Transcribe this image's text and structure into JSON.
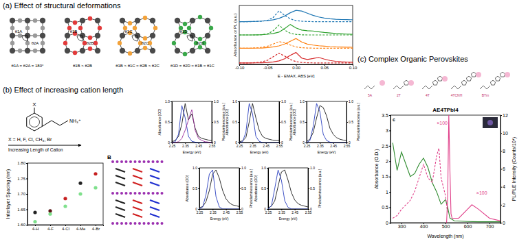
{
  "panels": {
    "a": {
      "title": "(a) Effect of structural deformations",
      "diagram_labels": [
        [
          "θ1A",
          "θ2A"
        ],
        [
          "θ1B",
          "θ2B"
        ],
        [
          "θ1C",
          "θ2C"
        ],
        [
          "θ1D",
          "θ2D"
        ]
      ],
      "angle_labels": [
        "θ1A = θ2A = 180°",
        "θ1B > θ2B",
        "θ1B > θ1C ≈ θ2B > θ2C",
        "θ1D = θ2D ≈ θ1B ≈ θ1C"
      ]
    },
    "b": {
      "title": "(b) Effect of increasing cation length",
      "substituent": "X",
      "amine": "NH₃⁺",
      "caption": "X = H, F, Cl, CH₃, Br",
      "arrow_label": "Increasing Length of Cation",
      "structure_label": "B"
    },
    "c": {
      "title": "(c) Complex Organic Perovskites",
      "molecules": [
        "5A",
        "2T",
        "4T",
        "4TCNH",
        "BTm"
      ],
      "inset_letter": "c",
      "annotations": [
        "×100",
        "×100"
      ]
    }
  },
  "chart_data": [
    {
      "type": "line",
      "xlabel": "E - EMAX, ABS [eV]",
      "ylabel": "Absorbance or PL (a.u.)",
      "x": [
        -0.1,
        -0.09,
        -0.08,
        -0.07,
        -0.06,
        -0.05,
        -0.04,
        -0.03,
        -0.02,
        -0.01,
        0,
        0.01,
        0.02,
        0.03,
        0.04,
        0.05,
        0.06,
        0.07,
        0.08,
        0.09,
        0.1
      ],
      "xlim": [
        -0.1,
        0.1
      ],
      "xticks": [
        {
          "value": -0.1,
          "label": "-0.10"
        },
        {
          "value": -0.05,
          "label": "-0.05"
        },
        {
          "value": 0,
          "label": "0.00"
        },
        {
          "value": 0.05,
          "label": "0.05"
        },
        {
          "value": 0.1,
          "label": "0.10"
        }
      ],
      "ylim": [
        0,
        4.2
      ],
      "tick_labels": "x",
      "series": [
        {
          "color": "#1f77b4",
          "line_style": "solid",
          "values": [
            3.05,
            3.05,
            3.06,
            3.07,
            3.09,
            3.12,
            3.18,
            3.28,
            3.45,
            3.68,
            3.85,
            3.8,
            3.65,
            3.5,
            3.38,
            3.3,
            3.25,
            3.22,
            3.2,
            3.19,
            3.18
          ]
        },
        {
          "color": "#1f77b4",
          "line_style": "dashed",
          "values": [
            3.05,
            3.05,
            3.05,
            3.06,
            3.08,
            3.14,
            3.35,
            3.82,
            3.5,
            3.25,
            3.12,
            3.08,
            3.06,
            3.05,
            3.05,
            3.05,
            3.05,
            3.05,
            3.05,
            3.05,
            3.05
          ]
        },
        {
          "color": "#2ca02c",
          "line_style": "solid",
          "values": [
            2.1,
            2.1,
            2.1,
            2.11,
            2.12,
            2.15,
            2.2,
            2.3,
            2.55,
            2.85,
            2.6,
            2.45,
            2.4,
            2.38,
            2.33,
            2.28,
            2.24,
            2.2,
            2.18,
            2.16,
            2.15
          ]
        },
        {
          "color": "#2ca02c",
          "line_style": "dashed",
          "values": [
            2.1,
            2.1,
            2.1,
            2.1,
            2.12,
            2.18,
            2.4,
            2.8,
            2.45,
            2.22,
            2.14,
            2.11,
            2.1,
            2.1,
            2.1,
            2.1,
            2.1,
            2.1,
            2.1,
            2.1,
            2.1
          ]
        },
        {
          "color": "#ff7f0e",
          "line_style": "solid",
          "values": [
            1.15,
            1.15,
            1.15,
            1.16,
            1.17,
            1.2,
            1.25,
            1.32,
            1.45,
            1.65,
            1.85,
            1.6,
            1.45,
            1.38,
            1.33,
            1.3,
            1.27,
            1.25,
            1.24,
            1.23,
            1.22
          ]
        },
        {
          "color": "#ff7f0e",
          "line_style": "dashed",
          "values": [
            1.15,
            1.15,
            1.16,
            1.18,
            1.22,
            1.3,
            1.45,
            1.62,
            1.55,
            1.38,
            1.25,
            1.19,
            1.17,
            1.16,
            1.15,
            1.15,
            1.15,
            1.15,
            1.15,
            1.15,
            1.15
          ]
        },
        {
          "color": "#d62728",
          "line_style": "solid",
          "values": [
            0.1,
            0.1,
            0.1,
            0.11,
            0.12,
            0.14,
            0.18,
            0.25,
            0.4,
            0.65,
            0.85,
            0.45,
            0.35,
            0.42,
            0.5,
            0.38,
            0.28,
            0.22,
            0.19,
            0.17,
            0.16
          ]
        },
        {
          "color": "#d62728",
          "line_style": "dashed",
          "values": [
            0.1,
            0.1,
            0.11,
            0.13,
            0.18,
            0.3,
            0.55,
            0.8,
            0.6,
            0.35,
            0.2,
            0.14,
            0.12,
            0.11,
            0.1,
            0.1,
            0.1,
            0.1,
            0.1,
            0.1,
            0.1
          ]
        }
      ]
    },
    {
      "type": "scatter",
      "ylabel": "Interlayer Spacing (nm)",
      "categories": [
        "4-H",
        "4-F",
        "4-Cl",
        "4-Me",
        "4-Br"
      ],
      "ylim": [
        1.6,
        1.8
      ],
      "yticks": [
        {
          "value": 1.6,
          "label": "1.60"
        },
        {
          "value": 1.65,
          "label": "1.65"
        },
        {
          "value": 1.7,
          "label": "1.70"
        },
        {
          "value": 1.75,
          "label": "1.75"
        },
        {
          "value": 1.8,
          "label": "1.80"
        }
      ],
      "series": [
        {
          "marker": "circle",
          "colors": [
            "#222222",
            "#5a1414",
            "#c62020",
            "#222222",
            "#c62020"
          ],
          "values": [
            1.64,
            1.645,
            1.685,
            1.735,
            1.765
          ]
        },
        {
          "marker": "circle",
          "color": "#7fe08c",
          "values": [
            1.61,
            1.635,
            1.66,
            1.7,
            1.72
          ]
        }
      ]
    },
    {
      "type": "line",
      "xlabel": "Energy (eV)",
      "ylabel": "Absorbance (OD)",
      "y2label": "Photoluminescence (a.u.)",
      "x": [
        2.25,
        2.275,
        2.3,
        2.325,
        2.35,
        2.375,
        2.4,
        2.425,
        2.45,
        2.475,
        2.5,
        2.525,
        2.55
      ],
      "xlim": [
        2.25,
        2.55
      ],
      "xticks": [
        2.25,
        2.35,
        2.45,
        2.55
      ],
      "ylim": [
        0,
        1
      ],
      "yticks": [
        0,
        {
          "value": 0.5,
          "label": "0.5"
        },
        {
          "value": 1,
          "label": "1.0"
        }
      ],
      "y2lim": [
        0,
        1
      ],
      "y2ticks": [
        0,
        {
          "value": 0.5,
          "label": "0.5"
        },
        {
          "value": 1,
          "label": "1.0"
        }
      ],
      "series": [
        {
          "color": "#1a1a1a",
          "line_style": "solid",
          "values": [
            0.02,
            0.05,
            0.15,
            0.45,
            0.95,
            0.55,
            0.7,
            0.35,
            0.15,
            0.1,
            0.08,
            0.06,
            0.05
          ]
        },
        {
          "color": "#2a3fc0",
          "line_style": "solid",
          "axis": "y2",
          "values": [
            0,
            0.02,
            0.2,
            0.9,
            0.6,
            0.15,
            0.03,
            0.01,
            0,
            0,
            0,
            0,
            0
          ]
        },
        {
          "color": "#9b2f9b",
          "line_style": "solid",
          "axis": "y2",
          "values": [
            0,
            0,
            0.02,
            0.1,
            0.3,
            0.55,
            0.8,
            0.3,
            0.1,
            0.05,
            0.02,
            0.01,
            0
          ]
        }
      ]
    },
    {
      "type": "line",
      "xlabel": "Energy (eV)",
      "ylabel": "Absorbance (OD)",
      "y2label": "Photoluminescence (a.u.)",
      "x": [
        2.25,
        2.275,
        2.3,
        2.325,
        2.35,
        2.375,
        2.4,
        2.425,
        2.45,
        2.475,
        2.5,
        2.525,
        2.55
      ],
      "xlim": [
        2.25,
        2.55
      ],
      "xticks": [
        2.25,
        2.35,
        2.45,
        2.55
      ],
      "ylim": [
        0,
        1
      ],
      "yticks": [
        0,
        {
          "value": 0.5,
          "label": "0.5"
        },
        {
          "value": 1,
          "label": "1.0"
        }
      ],
      "y2lim": [
        0,
        1
      ],
      "y2ticks": [
        0,
        {
          "value": 0.5,
          "label": "0.5"
        },
        {
          "value": 1,
          "label": "1.0"
        }
      ],
      "series": [
        {
          "color": "#1a1a1a",
          "line_style": "solid",
          "values": [
            0.02,
            0.04,
            0.12,
            0.5,
            0.95,
            0.6,
            0.3,
            0.15,
            0.1,
            0.08,
            0.06,
            0.05,
            0.05
          ]
        },
        {
          "color": "#2a3fc0",
          "line_style": "solid",
          "axis": "y2",
          "values": [
            0,
            0.02,
            0.25,
            0.95,
            0.7,
            0.15,
            0.03,
            0,
            0,
            0,
            0,
            0,
            0
          ]
        }
      ]
    },
    {
      "type": "line",
      "xlabel": "Energy (eV)",
      "ylabel": "Absorbance (OD)",
      "y2label": "Photoluminescence (a.u.)",
      "x": [
        2.25,
        2.275,
        2.3,
        2.325,
        2.35,
        2.375,
        2.4,
        2.425,
        2.45,
        2.475,
        2.5,
        2.525,
        2.55
      ],
      "xlim": [
        2.25,
        2.55
      ],
      "xticks": [
        2.25,
        2.35,
        2.45,
        2.55
      ],
      "ylim": [
        0,
        1
      ],
      "yticks": [
        0,
        {
          "value": 0.5,
          "label": "0.5"
        },
        {
          "value": 1,
          "label": "1.0"
        }
      ],
      "y2lim": [
        0,
        1
      ],
      "y2ticks": [
        0,
        {
          "value": 0.5,
          "label": "0.5"
        },
        {
          "value": 1,
          "label": "1.0"
        }
      ],
      "series": [
        {
          "color": "#1a1a1a",
          "line_style": "solid",
          "values": [
            0.03,
            0.08,
            0.25,
            0.6,
            0.9,
            0.85,
            0.65,
            0.35,
            0.2,
            0.12,
            0.08,
            0.06,
            0.05
          ]
        },
        {
          "color": "#2a3fc0",
          "line_style": "solid",
          "axis": "y2",
          "values": [
            0,
            0.05,
            0.4,
            0.95,
            0.75,
            0.2,
            0.05,
            0.01,
            0,
            0,
            0,
            0,
            0
          ]
        }
      ]
    },
    {
      "type": "line",
      "xlabel": "Energy (eV)",
      "ylabel": "Absorbance (OD)",
      "y2label": "Photoluminescence (a.u.)",
      "x": [
        2.25,
        2.275,
        2.3,
        2.325,
        2.35,
        2.375,
        2.4,
        2.425,
        2.45,
        2.475,
        2.5,
        2.525,
        2.55
      ],
      "xlim": [
        2.25,
        2.55
      ],
      "xticks": [
        2.25,
        2.35,
        2.45,
        2.55
      ],
      "ylim": [
        0,
        1
      ],
      "yticks": [
        0,
        {
          "value": 0.5,
          "label": "0.5"
        },
        {
          "value": 1,
          "label": "1.0"
        }
      ],
      "y2lim": [
        0,
        1
      ],
      "y2ticks": [
        0,
        {
          "value": 0.5,
          "label": "0.5"
        },
        {
          "value": 1,
          "label": "1.0"
        }
      ],
      "series": [
        {
          "color": "#1a1a1a",
          "line_style": "solid",
          "values": [
            0.03,
            0.06,
            0.18,
            0.45,
            0.85,
            0.95,
            0.75,
            0.45,
            0.25,
            0.15,
            0.1,
            0.08,
            0.06
          ]
        },
        {
          "color": "#2a3fc0",
          "line_style": "solid",
          "axis": "y2",
          "values": [
            0,
            0.05,
            0.35,
            0.85,
            0.95,
            0.3,
            0.05,
            0,
            0,
            0,
            0,
            0,
            0
          ]
        }
      ]
    },
    {
      "type": "line",
      "xlabel": "Energy (eV)",
      "ylabel": "Absorbance (OD)",
      "y2label": "Photoluminescence (a.u.)",
      "x": [
        2.25,
        2.275,
        2.3,
        2.325,
        2.35,
        2.375,
        2.4,
        2.425,
        2.45,
        2.475,
        2.5,
        2.525,
        2.55
      ],
      "xlim": [
        2.25,
        2.55
      ],
      "xticks": [
        2.25,
        2.35,
        2.45,
        2.55
      ],
      "ylim": [
        0,
        1
      ],
      "yticks": [
        0,
        {
          "value": 0.5,
          "label": "0.5"
        },
        {
          "value": 1,
          "label": "1.0"
        }
      ],
      "y2lim": [
        0,
        1
      ],
      "y2ticks": [
        0,
        {
          "value": 0.5,
          "label": "0.5"
        },
        {
          "value": 1,
          "label": "1.0"
        }
      ],
      "series": [
        {
          "color": "#1a1a1a",
          "line_style": "solid",
          "values": [
            0.03,
            0.07,
            0.2,
            0.55,
            0.9,
            0.95,
            0.7,
            0.4,
            0.22,
            0.13,
            0.09,
            0.07,
            0.05
          ]
        },
        {
          "color": "#2a3fc0",
          "line_style": "solid",
          "axis": "y2",
          "values": [
            0,
            0.08,
            0.5,
            0.95,
            0.7,
            0.2,
            0.04,
            0,
            0,
            0,
            0,
            0,
            0
          ]
        }
      ]
    },
    {
      "type": "line",
      "title": "AE4TPbI4",
      "xlabel": "Wavelength (nm)",
      "ylabel": "Absorbance (O.D.)",
      "y2label": "PL/PLE Intensity (Counts/10⁴)",
      "xlim": [
        250,
        750
      ],
      "xticks": [
        300,
        400,
        500,
        600,
        700
      ],
      "ylim": [
        0,
        3.5
      ],
      "yticks": [
        0,
        0.5,
        1,
        1.5,
        2,
        2.5,
        3,
        3.5
      ],
      "y2lim": [
        0,
        12
      ],
      "y2ticks": [
        0,
        2,
        4,
        6,
        8,
        10,
        12
      ],
      "series": [
        {
          "color": "#2e8b2e",
          "line_style": "solid",
          "x": [
            260,
            280,
            300,
            320,
            340,
            360,
            380,
            400,
            420,
            440,
            460,
            480,
            500,
            510,
            520,
            540,
            600,
            650,
            700,
            750
          ],
          "values": [
            2.6,
            1.7,
            2.3,
            1.9,
            1.5,
            1.6,
            1.9,
            2.1,
            1.8,
            1.3,
            1,
            0.6,
            0.75,
            0.5,
            0.15,
            0.06,
            0.04,
            0.03,
            0.03,
            0.03
          ]
        },
        {
          "color": "#e0408a",
          "line_style": "dashed",
          "axis": "y2",
          "x": [
            260,
            280,
            300,
            320,
            340,
            360,
            380,
            400,
            420,
            440,
            460,
            470,
            480,
            500,
            510
          ],
          "values": [
            0.5,
            0.8,
            1.5,
            2,
            2.5,
            3.5,
            5,
            6.5,
            5,
            4.5,
            7.5,
            8.3,
            5,
            3,
            1
          ]
        },
        {
          "color": "#e0408a",
          "line_style": "solid",
          "axis": "y2",
          "x": [
            505,
            510,
            515,
            520,
            525,
            530,
            560,
            600,
            620,
            650,
            700,
            750
          ],
          "values": [
            0,
            3,
            12,
            6,
            1,
            0.5,
            0.5,
            1.5,
            2,
            1.5,
            0.5,
            0.2
          ]
        }
      ]
    }
  ]
}
